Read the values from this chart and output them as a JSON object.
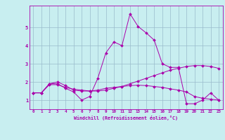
{
  "xlabel": "Windchill (Refroidissement éolien,°C)",
  "background_color": "#c8eef0",
  "line_color": "#aa00aa",
  "grid_color": "#99bbcc",
  "xlim": [
    -0.5,
    23.5
  ],
  "ylim": [
    0.5,
    6.2
  ],
  "xticks": [
    0,
    1,
    2,
    3,
    4,
    5,
    6,
    7,
    8,
    9,
    10,
    11,
    12,
    13,
    14,
    15,
    16,
    17,
    18,
    19,
    20,
    21,
    22,
    23
  ],
  "yticks": [
    1,
    2,
    3,
    4,
    5
  ],
  "series": [
    {
      "x": [
        0,
        1,
        2,
        3,
        4,
        5,
        6,
        7,
        8,
        9,
        10,
        11,
        12,
        13,
        14,
        15,
        16,
        17,
        18,
        19,
        20,
        21,
        22,
        23
      ],
      "y": [
        1.4,
        1.4,
        1.9,
        1.9,
        1.65,
        1.45,
        1.0,
        1.2,
        2.2,
        3.6,
        4.2,
        4.0,
        5.75,
        5.05,
        4.7,
        4.3,
        3.0,
        2.8,
        2.8,
        0.8,
        0.8,
        1.0,
        1.4,
        1.0
      ]
    },
    {
      "x": [
        0,
        1,
        2,
        3,
        4,
        5,
        6,
        7,
        8,
        9,
        10,
        11,
        12,
        13,
        14,
        15,
        16,
        17,
        18,
        19,
        20,
        21,
        22,
        23
      ],
      "y": [
        1.4,
        1.4,
        1.85,
        1.85,
        1.7,
        1.6,
        1.55,
        1.5,
        1.5,
        1.55,
        1.65,
        1.75,
        1.9,
        2.05,
        2.2,
        2.35,
        2.5,
        2.65,
        2.75,
        2.85,
        2.9,
        2.9,
        2.85,
        2.75
      ]
    },
    {
      "x": [
        0,
        1,
        2,
        3,
        4,
        5,
        6,
        7,
        8,
        9,
        10,
        11,
        12,
        13,
        14,
        15,
        16,
        17,
        18,
        19,
        20,
        21,
        22,
        23
      ],
      "y": [
        1.4,
        1.4,
        1.9,
        2.0,
        1.8,
        1.55,
        1.5,
        1.5,
        1.55,
        1.65,
        1.7,
        1.75,
        1.8,
        1.82,
        1.8,
        1.75,
        1.7,
        1.62,
        1.55,
        1.45,
        1.2,
        1.1,
        1.05,
        1.0
      ]
    }
  ]
}
